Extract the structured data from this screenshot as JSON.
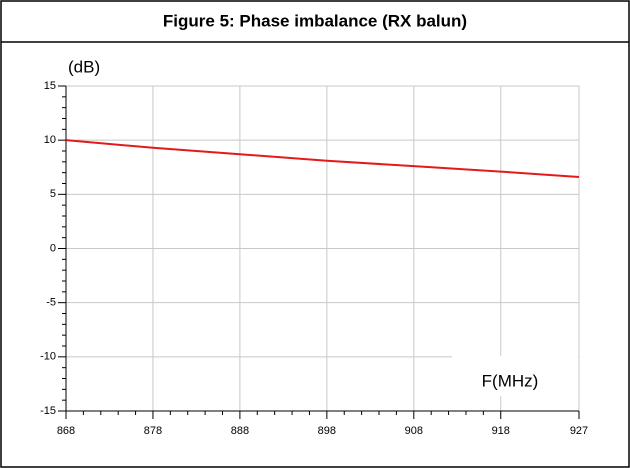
{
  "chart_data": {
    "type": "line",
    "title": "Figure 5: Phase imbalance (RX balun)",
    "ylabel": "(dB)",
    "xlabel": "F(MHz)",
    "x": [
      868,
      878,
      888,
      898,
      908,
      918,
      927
    ],
    "series": [
      {
        "name": "Phase imbalance",
        "color": "#e41a1a",
        "values": [
          10.0,
          9.3,
          8.7,
          8.1,
          7.6,
          7.1,
          6.6
        ]
      }
    ],
    "xlim": [
      868,
      927
    ],
    "xticks": [
      868,
      878,
      888,
      898,
      908,
      918,
      927
    ],
    "ylim": [
      -15,
      15
    ],
    "yticks": [
      15,
      10,
      5,
      0,
      -5,
      -10,
      -15
    ],
    "grid": true
  }
}
